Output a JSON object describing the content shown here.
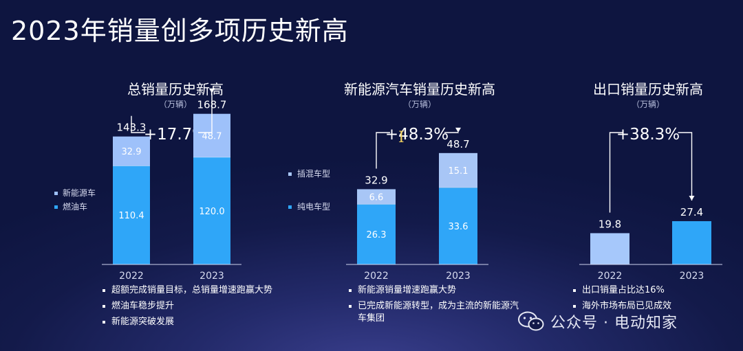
{
  "page": {
    "title": "2023年销量创多项历史新高"
  },
  "colors": {
    "ice": "#2fa6f8",
    "nev": "#9ec1fa",
    "plugin": "#a8c6f6",
    "bev": "#2fa6f8",
    "export2022": "#a6c8fb",
    "export2023": "#2fa6f8"
  },
  "panels": [
    {
      "title": "总销量历史新高",
      "unit": "（万辆）",
      "growth": "+17.7%",
      "legend": [
        {
          "label": "新能源车",
          "color": "#9ec1fa"
        },
        {
          "label": "燃油车",
          "color": "#2fa6f8"
        }
      ],
      "bullets": [
        "超额完成销量目标，总销量增速跑赢大势",
        "燃油车稳步提升",
        "新能源突破发展"
      ]
    },
    {
      "title": "新能源汽车销量历史新高",
      "unit": "（万辆）",
      "growth": "+48.3%",
      "legend": [
        {
          "label": "插混车型",
          "color": "#a8c6f6"
        },
        {
          "label": "纯电车型",
          "color": "#2fa6f8"
        }
      ],
      "bullets": [
        "新能源销量增速跑赢大势",
        "已完成新能源转型，成为主流的新能源汽车集团"
      ]
    },
    {
      "title": "出口销量历史新高",
      "unit": "（万辆）",
      "growth": "+38.3%",
      "legend": [],
      "bullets": [
        "出口销量占比达16%",
        "海外市场布局已见成效"
      ]
    }
  ],
  "chart_data": [
    {
      "type": "bar",
      "stacked": true,
      "title": "总销量历史新高",
      "unit": "（万辆）",
      "categories": [
        "2022",
        "2023"
      ],
      "series": [
        {
          "name": "燃油车",
          "values": [
            110.4,
            120.0
          ]
        },
        {
          "name": "新能源车",
          "values": [
            32.9,
            48.7
          ]
        }
      ],
      "totals": [
        143.3,
        168.7
      ],
      "growth_label": "+17.7%",
      "ylim": [
        0,
        180
      ],
      "grid": false,
      "legend_position": "left"
    },
    {
      "type": "bar",
      "stacked": true,
      "title": "新能源汽车销量历史新高",
      "unit": "（万辆）",
      "categories": [
        "2022",
        "2023"
      ],
      "series": [
        {
          "name": "纯电车型",
          "values": [
            26.3,
            33.6
          ]
        },
        {
          "name": "插混车型",
          "values": [
            6.6,
            15.1
          ]
        }
      ],
      "totals": [
        32.9,
        48.7
      ],
      "growth_label": "+48.3%",
      "ylim": [
        0,
        55
      ],
      "grid": false,
      "legend_position": "left"
    },
    {
      "type": "bar",
      "stacked": false,
      "title": "出口销量历史新高",
      "unit": "（万辆）",
      "categories": [
        "2022",
        "2023"
      ],
      "values": [
        19.8,
        27.4
      ],
      "totals": [
        19.8,
        27.4
      ],
      "growth_label": "+38.3%",
      "ylim": [
        0,
        55
      ],
      "grid": false
    }
  ],
  "watermark": {
    "text": "公众号 · 电动知家",
    "icon": "wechat-icon"
  }
}
